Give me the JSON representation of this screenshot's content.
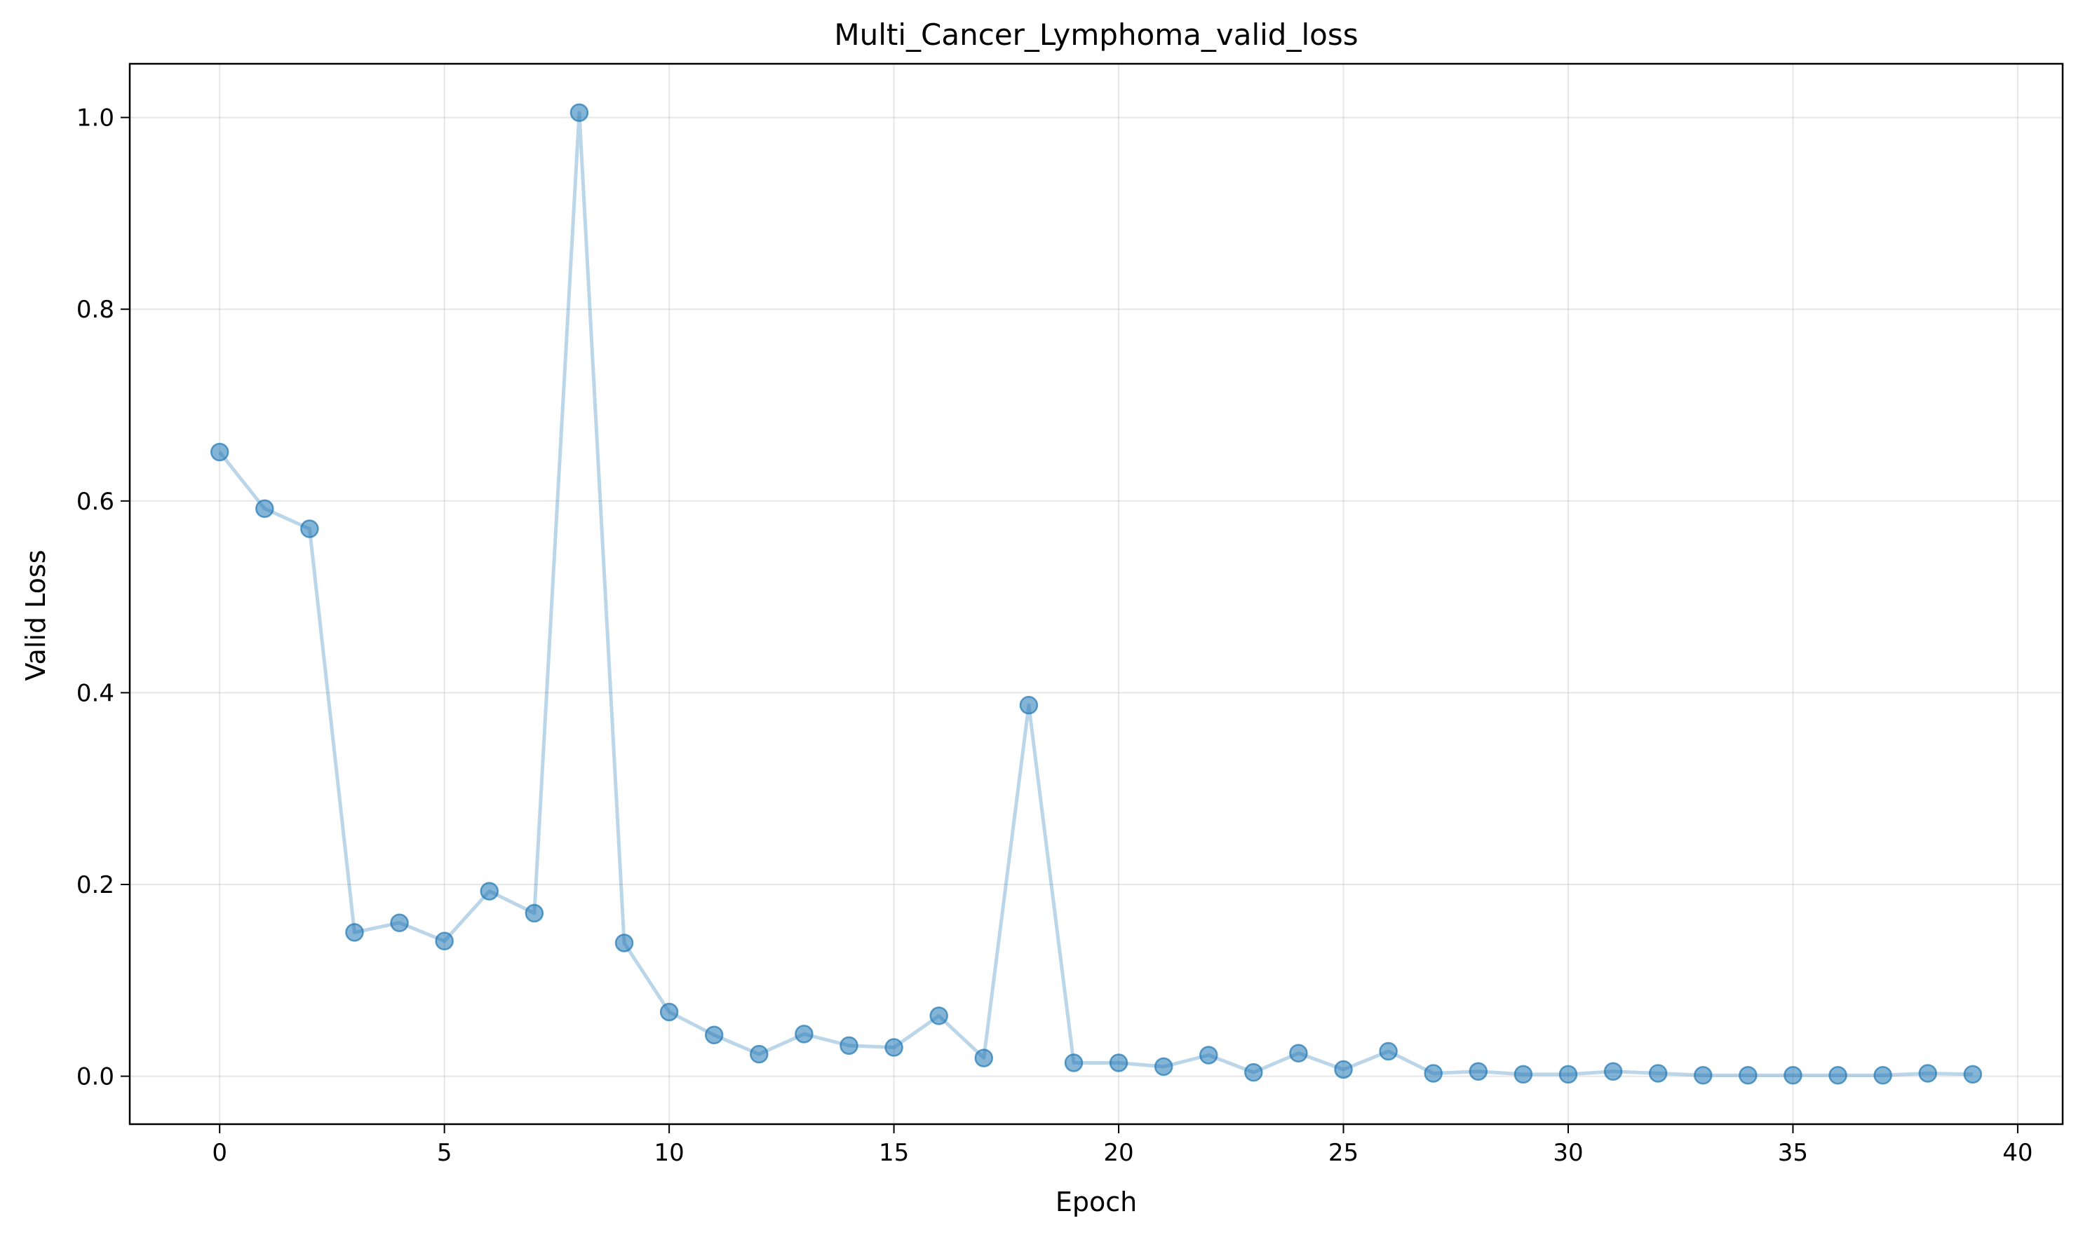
{
  "chart_data": {
    "type": "line",
    "title": "Multi_Cancer_Lymphoma_valid_loss",
    "xlabel": "Epoch",
    "ylabel": "Valid Loss",
    "xlim": [
      -2,
      41
    ],
    "ylim": [
      -0.05,
      1.056
    ],
    "xticks": [
      0,
      5,
      10,
      15,
      20,
      25,
      30,
      35,
      40
    ],
    "xtick_labels": [
      "0",
      "5",
      "10",
      "15",
      "20",
      "25",
      "30",
      "35",
      "40"
    ],
    "yticks": [
      0.0,
      0.2,
      0.4,
      0.6,
      0.8,
      1.0
    ],
    "ytick_labels": [
      "0.0",
      "0.2",
      "0.4",
      "0.6",
      "0.8",
      "1.0"
    ],
    "grid": true,
    "legend": "none",
    "series": [
      {
        "color": "#1f77b4",
        "marker": "circle",
        "x": [
          0,
          1,
          2,
          3,
          4,
          5,
          6,
          7,
          8,
          9,
          10,
          11,
          12,
          13,
          14,
          15,
          16,
          17,
          18,
          19,
          20,
          21,
          22,
          23,
          24,
          25,
          26,
          27,
          28,
          29,
          30,
          31,
          32,
          33,
          34,
          35,
          36,
          37,
          38,
          39
        ],
        "y": [
          0.651,
          0.592,
          0.571,
          0.15,
          0.16,
          0.141,
          0.193,
          0.17,
          1.005,
          0.139,
          0.067,
          0.043,
          0.023,
          0.044,
          0.032,
          0.03,
          0.063,
          0.019,
          0.387,
          0.014,
          0.014,
          0.01,
          0.022,
          0.004,
          0.024,
          0.007,
          0.026,
          0.003,
          0.005,
          0.002,
          0.002,
          0.005,
          0.003,
          0.001,
          0.001,
          0.001,
          0.001,
          0.001,
          0.003,
          0.002
        ]
      }
    ]
  }
}
